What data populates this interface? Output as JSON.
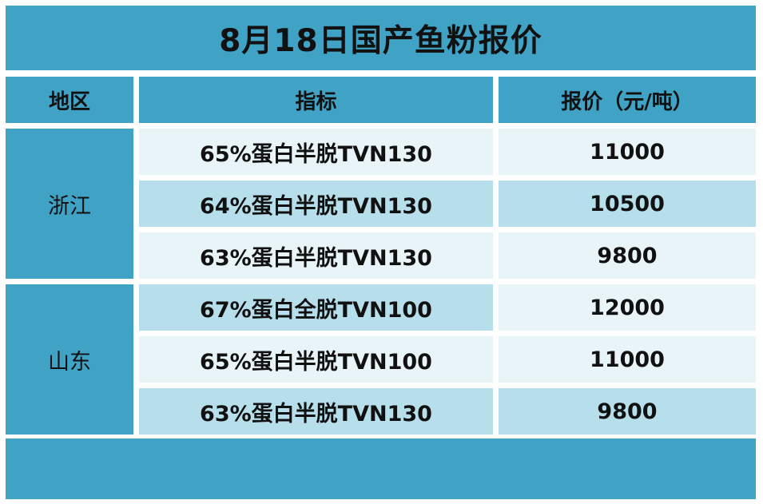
{
  "title": "8月18日国产鱼粉报价",
  "headers": {
    "region": "地区",
    "indicator": "指标",
    "price": "报价（元/吨）"
  },
  "regions": [
    "浙江",
    "山东"
  ],
  "rows": [
    {
      "indicator": "65%蛋白半脱TVN130",
      "price": "11000"
    },
    {
      "indicator": "64%蛋白半脱TVN130",
      "price": "10500"
    },
    {
      "indicator": "63%蛋白半脱TVN130",
      "price": "9800"
    },
    {
      "indicator": "67%蛋白全脱TVN100",
      "price": "12000"
    },
    {
      "indicator": "65%蛋白半脱TVN100",
      "price": "11000"
    },
    {
      "indicator": "63%蛋白半脱TVN130",
      "price": "9800"
    }
  ]
}
